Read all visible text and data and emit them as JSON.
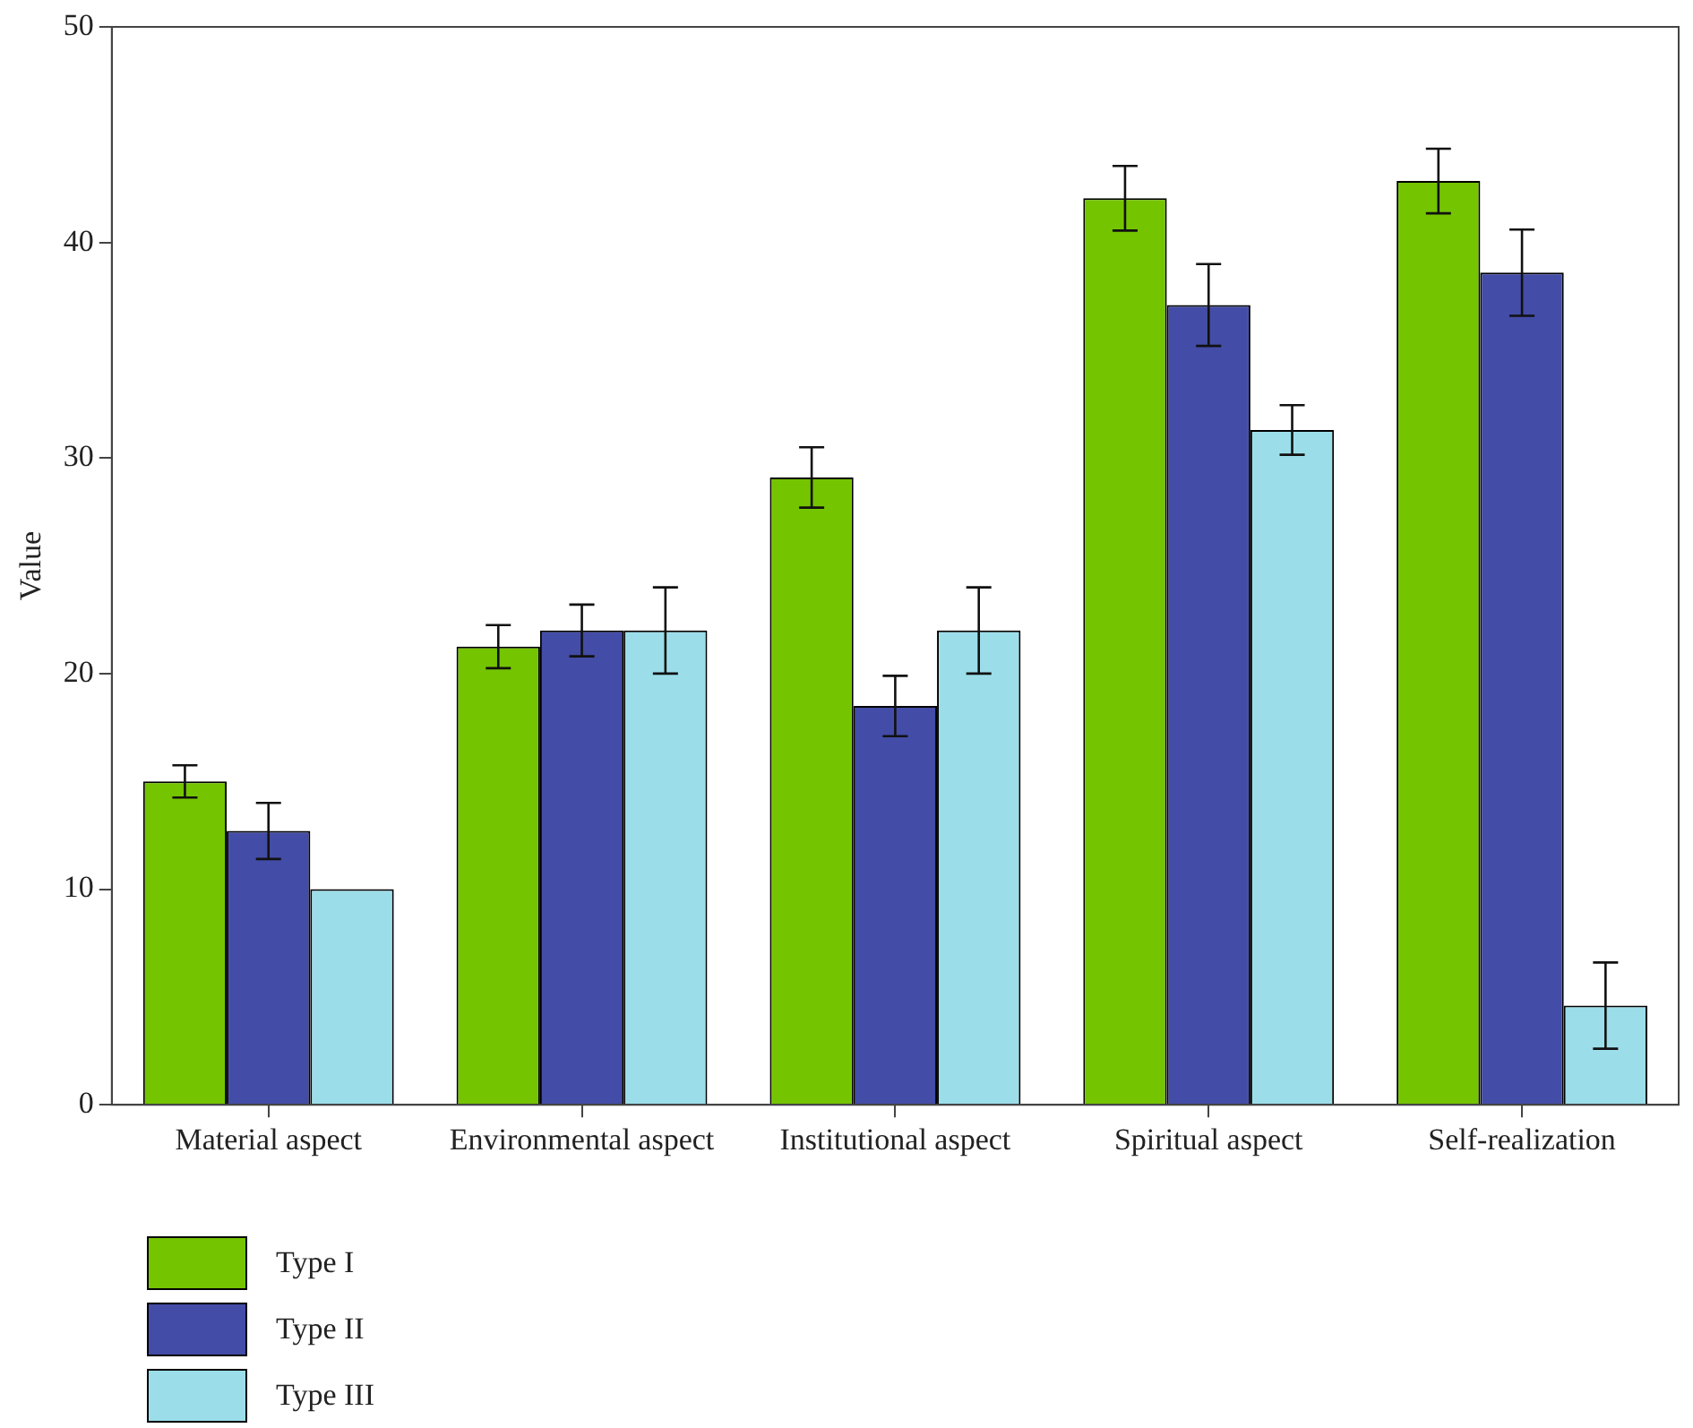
{
  "chart_data": {
    "type": "bar",
    "ylabel": "Value",
    "categories": [
      "Material aspect",
      "Environmental aspect",
      "Institutional aspect",
      "Spiritual aspect",
      "Self-realization"
    ],
    "series": [
      {
        "name": "Type I",
        "color": "#74c400",
        "values": [
          15.0,
          21.25,
          29.1,
          42.05,
          42.85
        ],
        "errors": [
          0.75,
          1.0,
          1.4,
          1.5,
          1.5
        ]
      },
      {
        "name": "Type II",
        "color": "#434ca6",
        "values": [
          12.7,
          22.0,
          18.5,
          37.1,
          38.6
        ],
        "errors": [
          1.3,
          1.2,
          1.4,
          1.9,
          2.0
        ]
      },
      {
        "name": "Type III",
        "color": "#9bdeea",
        "values": [
          10.0,
          22.0,
          22.0,
          31.3,
          4.6
        ],
        "errors": [
          null,
          2.0,
          2.0,
          1.15,
          2.0
        ]
      }
    ],
    "ylim": [
      0,
      50
    ],
    "yticks": [
      0,
      10,
      20,
      30,
      40,
      50
    ],
    "grid": false,
    "legend": "bottom left"
  }
}
